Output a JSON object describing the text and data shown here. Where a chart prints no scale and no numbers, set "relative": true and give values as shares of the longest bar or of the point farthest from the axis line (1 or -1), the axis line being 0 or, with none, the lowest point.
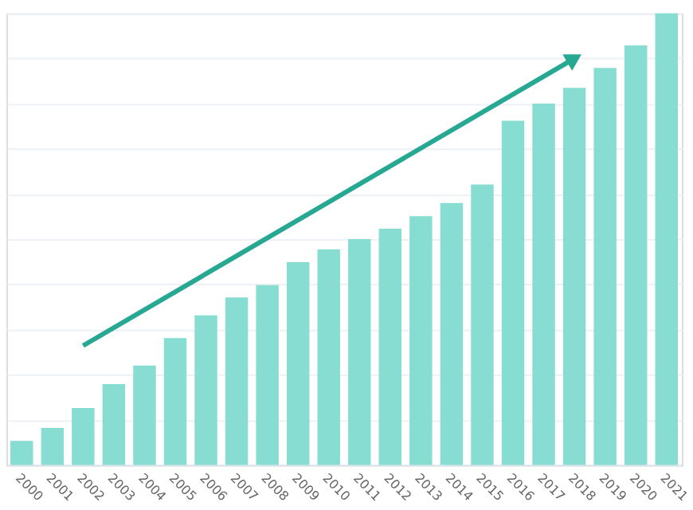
{
  "chart_data": {
    "type": "bar",
    "relative": true,
    "grid": "y",
    "categories": [
      "2000",
      "2001",
      "2002",
      "2003",
      "2004",
      "2005",
      "2006",
      "2007",
      "2008",
      "2009",
      "2010",
      "2011",
      "2012",
      "2013",
      "2014",
      "2015",
      "2016",
      "2017",
      "2018",
      "2019",
      "2020",
      "2021"
    ],
    "series": [
      {
        "color": "#88ddd3",
        "values": [
          0.053,
          0.082,
          0.126,
          0.179,
          0.22,
          0.281,
          0.331,
          0.371,
          0.398,
          0.449,
          0.477,
          0.5,
          0.523,
          0.551,
          0.58,
          0.621,
          0.762,
          0.8,
          0.835,
          0.879,
          0.929,
          1
        ]
      },
      {
        "type": "line",
        "color": "#26a892",
        "values": [
          null,
          null,
          0.264,
          null,
          null,
          null,
          null,
          null,
          null,
          null,
          null,
          null,
          null,
          null,
          null,
          null,
          null,
          null,
          0.9,
          null,
          null,
          null
        ]
      }
    ]
  }
}
